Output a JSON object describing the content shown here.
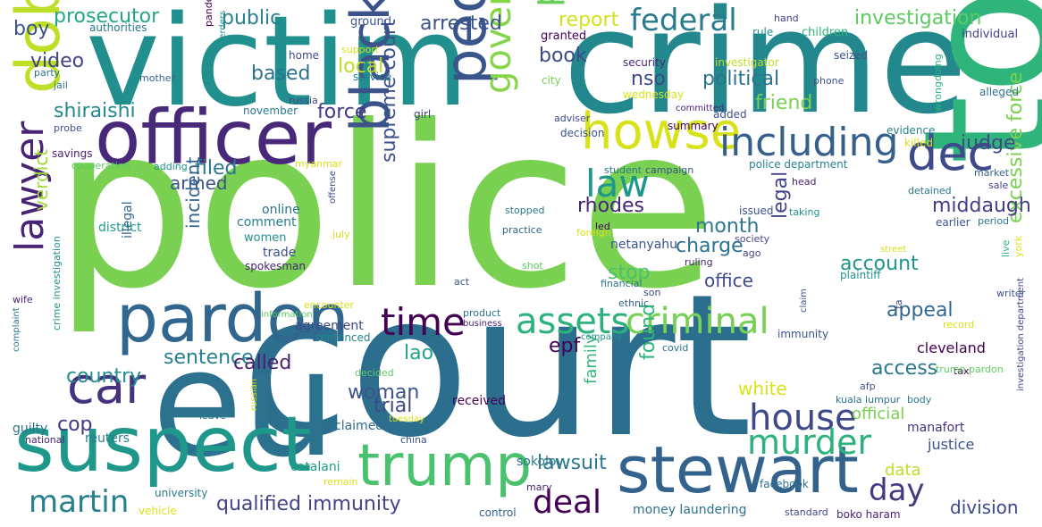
{
  "words": [
    {
      "text": "police",
      "color": "#7ad151"
    },
    {
      "text": "court",
      "color": "#2c6e8e"
    },
    {
      "text": "eu",
      "color": "#2c728e"
    },
    {
      "text": "victim",
      "color": "#218f8d"
    },
    {
      "text": "crime",
      "color": "#23888e"
    },
    {
      "text": "told",
      "color": "#2fb47c"
    },
    {
      "text": "officer",
      "color": "#482979"
    },
    {
      "text": "suspect",
      "color": "#1f988b"
    },
    {
      "text": "dobbins",
      "color": "#bddf26"
    },
    {
      "text": "pardon",
      "color": "#31668e"
    },
    {
      "text": "stewart",
      "color": "#33638d"
    },
    {
      "text": "trump",
      "color": "#4ac16d"
    },
    {
      "text": "people",
      "color": "#39558c"
    },
    {
      "text": "black",
      "color": "#3b528b"
    },
    {
      "text": "howse",
      "color": "#d8e219"
    },
    {
      "text": "car",
      "color": "#46337f"
    },
    {
      "text": "dec",
      "color": "#3e4a89"
    },
    {
      "text": "lawyer",
      "color": "#482475"
    },
    {
      "text": "including",
      "color": "#35608d"
    },
    {
      "text": "government",
      "color": "#86d549"
    },
    {
      "text": "president",
      "color": "#6ccd5a"
    },
    {
      "text": "assets",
      "color": "#2db27d"
    },
    {
      "text": "criminal",
      "color": "#75d054"
    },
    {
      "text": "time",
      "color": "#440154"
    },
    {
      "text": "law",
      "color": "#1f978b"
    },
    {
      "text": "house",
      "color": "#3e4989"
    },
    {
      "text": "murder",
      "color": "#2db27d"
    },
    {
      "text": "federal",
      "color": "#287c8e"
    },
    {
      "text": "martin",
      "color": "#27808e"
    },
    {
      "text": "deal",
      "color": "#440154"
    },
    {
      "text": "day",
      "color": "#453781"
    },
    {
      "text": "investigation",
      "color": "#5ec962"
    },
    {
      "text": "supreme court",
      "color": "#3b528b"
    },
    {
      "text": "excessive force",
      "color": "#7ad151"
    },
    {
      "text": "qualified immunity",
      "color": "#414487"
    },
    {
      "text": "lawsuit",
      "color": "#2a788e"
    },
    {
      "text": "middaugh",
      "color": "#433e85"
    },
    {
      "text": "prosecutor",
      "color": "#22a884"
    },
    {
      "text": "public",
      "color": "#277f8e"
    },
    {
      "text": "arrested",
      "color": "#3b528b"
    },
    {
      "text": "report",
      "color": "#d2e21b"
    },
    {
      "text": "boy",
      "color": "#3b528b"
    },
    {
      "text": "video",
      "color": "#414487"
    },
    {
      "text": "based",
      "color": "#2c728e"
    },
    {
      "text": "local",
      "color": "#bddf26"
    },
    {
      "text": "book",
      "color": "#3e4989"
    },
    {
      "text": "nso",
      "color": "#3e4989"
    },
    {
      "text": "political",
      "color": "#2c728e"
    },
    {
      "text": "friend",
      "color": "#7ad151"
    },
    {
      "text": "shiraishi",
      "color": "#23898e"
    },
    {
      "text": "force",
      "color": "#443a83"
    },
    {
      "text": "judge",
      "color": "#3e4989"
    },
    {
      "text": "filed",
      "color": "#2a788e"
    },
    {
      "text": "armed",
      "color": "#3b528b"
    },
    {
      "text": "verdict",
      "color": "#a0da39"
    },
    {
      "text": "rhodes",
      "color": "#482677"
    },
    {
      "text": "month",
      "color": "#2a788e"
    },
    {
      "text": "charge",
      "color": "#2c728e"
    },
    {
      "text": "incident",
      "color": "#33638d"
    },
    {
      "text": "legal",
      "color": "#414487"
    },
    {
      "text": "account",
      "color": "#1f968b"
    },
    {
      "text": "stop",
      "color": "#4ac16d"
    },
    {
      "text": "office",
      "color": "#3e4989"
    },
    {
      "text": "appeal",
      "color": "#31688e"
    },
    {
      "text": "sentence",
      "color": "#26828e"
    },
    {
      "text": "country",
      "color": "#218f8d"
    },
    {
      "text": "called",
      "color": "#481f70"
    },
    {
      "text": "lao",
      "color": "#20a486"
    },
    {
      "text": "epf",
      "color": "#440154"
    },
    {
      "text": "woman",
      "color": "#3b528b"
    },
    {
      "text": "trial",
      "color": "#3e4989"
    },
    {
      "text": "cop",
      "color": "#453781"
    },
    {
      "text": "found",
      "color": "#2fb47c"
    },
    {
      "text": "white",
      "color": "#d8e219"
    },
    {
      "text": "access",
      "color": "#2a788e"
    },
    {
      "text": "cleveland",
      "color": "#440154"
    },
    {
      "text": "family",
      "color": "#35b779"
    },
    {
      "text": "data",
      "color": "#bddf26"
    },
    {
      "text": "division",
      "color": "#3e4989"
    },
    {
      "text": "official",
      "color": "#7ad151"
    },
    {
      "text": "justice",
      "color": "#3b528b"
    },
    {
      "text": "manafort",
      "color": "#46327e"
    },
    {
      "text": "money laundering",
      "color": "#2c728e"
    },
    {
      "text": "sokolov",
      "color": "#2a788e"
    },
    {
      "text": "received",
      "color": "#440154"
    },
    {
      "text": "claimed",
      "color": "#31688e"
    },
    {
      "text": "netanyahu",
      "color": "#3b528b"
    },
    {
      "text": "comment",
      "color": "#26828e"
    },
    {
      "text": "online",
      "color": "#2c728e"
    },
    {
      "text": "women",
      "color": "#21918c"
    },
    {
      "text": "trade",
      "color": "#3b528b"
    },
    {
      "text": "spokesman",
      "color": "#482475"
    },
    {
      "text": "district",
      "color": "#1f9e89"
    },
    {
      "text": "illegal",
      "color": "#33638d"
    },
    {
      "text": "agreement",
      "color": "#3e4989"
    },
    {
      "text": "sentenced",
      "color": "#25848e"
    },
    {
      "text": "reuters",
      "color": "#26828e"
    },
    {
      "text": "guilty",
      "color": "#2c728e"
    },
    {
      "text": "catalani",
      "color": "#1f9e89"
    },
    {
      "text": "university",
      "color": "#2a788e"
    },
    {
      "text": "vehicle",
      "color": "#d8e219"
    },
    {
      "text": "control",
      "color": "#33638d"
    },
    {
      "text": "standard",
      "color": "#3e4989"
    },
    {
      "text": "boko haram",
      "color": "#482475"
    },
    {
      "text": "facebook",
      "color": "#2c728e"
    },
    {
      "text": "authorities",
      "color": "#2a788e"
    },
    {
      "text": "ground",
      "color": "#3b528b"
    },
    {
      "text": "hand",
      "color": "#3e4989"
    },
    {
      "text": "rule",
      "color": "#21918c"
    },
    {
      "text": "children",
      "color": "#2fb47c"
    },
    {
      "text": "individual",
      "color": "#414487"
    },
    {
      "text": "granted",
      "color": "#440154"
    },
    {
      "text": "pandemic",
      "color": "#440154"
    },
    {
      "text": "herders",
      "color": "#21918c"
    },
    {
      "text": "support",
      "color": "#d8e219"
    },
    {
      "text": "home",
      "color": "#3e4989"
    },
    {
      "text": "security",
      "color": "#482475"
    },
    {
      "text": "investigator",
      "color": "#bddf26"
    },
    {
      "text": "seized",
      "color": "#3b528b"
    },
    {
      "text": "party",
      "color": "#2c728e"
    },
    {
      "text": "mother",
      "color": "#33638d"
    },
    {
      "text": "service",
      "color": "#2a788e"
    },
    {
      "text": "city",
      "color": "#7ad151"
    },
    {
      "text": "wednesday",
      "color": "#d8e219"
    },
    {
      "text": "phone",
      "color": "#3b528b"
    },
    {
      "text": "jail",
      "color": "#2a788e"
    },
    {
      "text": "russia",
      "color": "#414487"
    },
    {
      "text": "wrongdoing",
      "color": "#2fb47c"
    },
    {
      "text": "alleged",
      "color": "#2c728e"
    },
    {
      "text": "probe",
      "color": "#3b528b"
    },
    {
      "text": "november",
      "color": "#2a788e"
    },
    {
      "text": "girl",
      "color": "#414487"
    },
    {
      "text": "adviser",
      "color": "#3e4989"
    },
    {
      "text": "committed",
      "color": "#482475"
    },
    {
      "text": "added",
      "color": "#3b528b"
    },
    {
      "text": "summary",
      "color": "#440154"
    },
    {
      "text": "decision",
      "color": "#3b528b"
    },
    {
      "text": "evidence",
      "color": "#26828e"
    },
    {
      "text": "killed",
      "color": "#d8e219"
    },
    {
      "text": "savings",
      "color": "#482475"
    },
    {
      "text": "cooperation",
      "color": "#5ec962"
    },
    {
      "text": "adding",
      "color": "#21918c"
    },
    {
      "text": "myanmar",
      "color": "#d8e219"
    },
    {
      "text": "student",
      "color": "#2a788e"
    },
    {
      "text": "campaign",
      "color": "#3b528b"
    },
    {
      "text": "police department",
      "color": "#26828e"
    },
    {
      "text": "market",
      "color": "#33638d"
    },
    {
      "text": "sale",
      "color": "#414487"
    },
    {
      "text": "head",
      "color": "#482475"
    },
    {
      "text": "detained",
      "color": "#2a788e"
    },
    {
      "text": "issued",
      "color": "#3b528b"
    },
    {
      "text": "taking",
      "color": "#21918c"
    },
    {
      "text": "stopped",
      "color": "#2a788e"
    },
    {
      "text": "offense",
      "color": "#3e4989"
    },
    {
      "text": "july",
      "color": "#d8e219"
    },
    {
      "text": "led",
      "color": "#440154"
    },
    {
      "text": "foreign",
      "color": "#d8e219"
    },
    {
      "text": "practice",
      "color": "#33638d"
    },
    {
      "text": "earlier",
      "color": "#3b528b"
    },
    {
      "text": "period",
      "color": "#2a788e"
    },
    {
      "text": "society",
      "color": "#3e4989"
    },
    {
      "text": "ago",
      "color": "#414487"
    },
    {
      "text": "ruling",
      "color": "#482475"
    },
    {
      "text": "live",
      "color": "#2fb47c"
    },
    {
      "text": "york",
      "color": "#d8e219"
    },
    {
      "text": "street",
      "color": "#d8e219"
    },
    {
      "text": "plaintiff",
      "color": "#21918c"
    },
    {
      "text": "shot",
      "color": "#5ec962"
    },
    {
      "text": "wife",
      "color": "#482475"
    },
    {
      "text": "crime investigation",
      "color": "#21918c"
    },
    {
      "text": "act",
      "color": "#3b528b"
    },
    {
      "text": "financial",
      "color": "#2c728e"
    },
    {
      "text": "son",
      "color": "#3e4989"
    },
    {
      "text": "ethnic",
      "color": "#33638d"
    },
    {
      "text": "encounter",
      "color": "#d8e219"
    },
    {
      "text": "information",
      "color": "#5ec962"
    },
    {
      "text": "product",
      "color": "#2c728e"
    },
    {
      "text": "business",
      "color": "#482475"
    },
    {
      "text": "claim",
      "color": "#3b528b"
    },
    {
      "text": "tax",
      "color": "#440154"
    },
    {
      "text": "writer",
      "color": "#3b528b"
    },
    {
      "text": "fa",
      "color": "#414487"
    },
    {
      "text": "record",
      "color": "#d8e219"
    },
    {
      "text": "investigation department",
      "color": "#3e4989"
    },
    {
      "text": "complaint",
      "color": "#2a788e"
    },
    {
      "text": "company",
      "color": "#21918c"
    },
    {
      "text": "immunity",
      "color": "#3b528b"
    },
    {
      "text": "covid",
      "color": "#2c728e"
    },
    {
      "text": "decided",
      "color": "#5ec962"
    },
    {
      "text": "leave",
      "color": "#2a788e"
    },
    {
      "text": "russian",
      "color": "#d8e219"
    },
    {
      "text": "tuesday",
      "color": "#d8e219"
    },
    {
      "text": "china",
      "color": "#3b528b"
    },
    {
      "text": "national",
      "color": "#482475"
    },
    {
      "text": "remain",
      "color": "#d8e219"
    },
    {
      "text": "mary",
      "color": "#482475"
    },
    {
      "text": "trump pardon",
      "color": "#5ec962"
    },
    {
      "text": "kuala lumpur",
      "color": "#2c728e"
    },
    {
      "text": "afp",
      "color": "#3b528b"
    },
    {
      "text": "body",
      "color": "#2a788e"
    }
  ]
}
